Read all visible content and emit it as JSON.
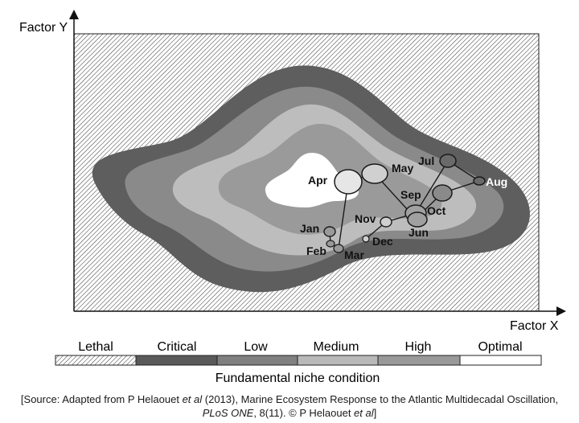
{
  "axes": {
    "y_label": "Factor Y",
    "x_label": "Factor X"
  },
  "months": [
    {
      "id": "jan",
      "label": "Jan"
    },
    {
      "id": "feb",
      "label": "Feb"
    },
    {
      "id": "mar",
      "label": "Mar"
    },
    {
      "id": "apr",
      "label": "Apr"
    },
    {
      "id": "may",
      "label": "May"
    },
    {
      "id": "jun",
      "label": "Jun"
    },
    {
      "id": "jul",
      "label": "Jul"
    },
    {
      "id": "aug",
      "label": "Aug"
    },
    {
      "id": "sep",
      "label": "Sep"
    },
    {
      "id": "oct",
      "label": "Oct"
    },
    {
      "id": "nov",
      "label": "Nov"
    },
    {
      "id": "dec",
      "label": "Dec"
    }
  ],
  "legend": {
    "title": "Fundamental niche condition",
    "items": [
      {
        "label": "Lethal",
        "color": "hatched"
      },
      {
        "label": "Critical",
        "color": "#5a5a5a"
      },
      {
        "label": "Low",
        "color": "#808080"
      },
      {
        "label": "Medium",
        "color": "#b9b9b9"
      },
      {
        "label": "High",
        "color": "#999999"
      },
      {
        "label": "Optimal",
        "color": "#ffffff"
      }
    ]
  },
  "source": {
    "line1_a": "[Source: Adapted from P Helaouet ",
    "line1_b": "et al",
    "line1_c": " (2013), Marine Ecosystem Response to the Atlantic Multidecadal Oscillation,",
    "line2_a": "PLoS ONE",
    "line2_b": ", 8(11). © P Helaouet ",
    "line2_c": "et al",
    "line2_d": "]"
  }
}
